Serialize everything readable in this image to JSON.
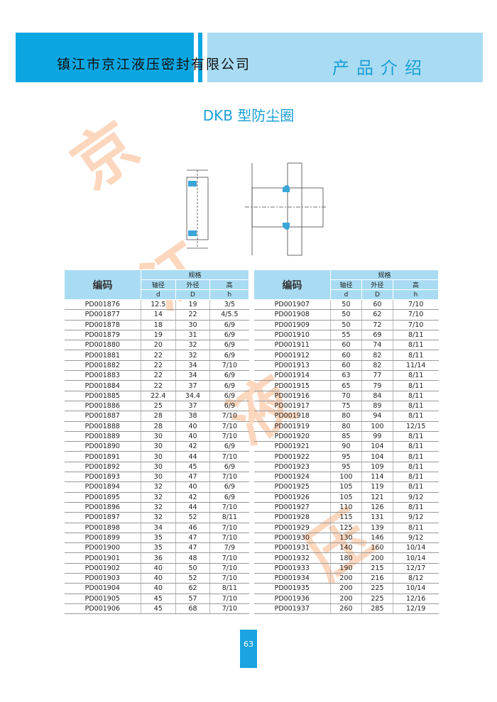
{
  "header": {
    "company": "镇江市京江液压密封有限公司",
    "section": "产品介绍",
    "colors": {
      "dark": "#0aa6e2",
      "light": "#a9dcf3"
    }
  },
  "title": "DKB 型防尘圈",
  "watermark": [
    "京",
    "江",
    "液",
    "压"
  ],
  "table_headers": {
    "code": "编码",
    "spec": "规格",
    "shaft": "轴径",
    "outer": "外径",
    "height": "高",
    "d": "d",
    "D": "D",
    "h": "h"
  },
  "left_rows": [
    [
      "PD001876",
      "12.5",
      "19",
      "3/5"
    ],
    [
      "PD001877",
      "14",
      "22",
      "4/5.5"
    ],
    [
      "PD001878",
      "18",
      "30",
      "6/9"
    ],
    [
      "PD001879",
      "19",
      "31",
      "6/9"
    ],
    [
      "PD001880",
      "20",
      "32",
      "6/9"
    ],
    [
      "PD001881",
      "22",
      "32",
      "6/9"
    ],
    [
      "PD001882",
      "22",
      "34",
      "7/10"
    ],
    [
      "PD001883",
      "22",
      "34",
      "6/9"
    ],
    [
      "PD001884",
      "22",
      "37",
      "6/9"
    ],
    [
      "PD001885",
      "22.4",
      "34.4",
      "6/9"
    ],
    [
      "PD001886",
      "25",
      "37",
      "6/9"
    ],
    [
      "PD001887",
      "28",
      "38",
      "7/10"
    ],
    [
      "PD001888",
      "28",
      "40",
      "7/10"
    ],
    [
      "PD001889",
      "30",
      "40",
      "7/10"
    ],
    [
      "PD001890",
      "30",
      "42",
      "6/9"
    ],
    [
      "PD001891",
      "30",
      "44",
      "7/10"
    ],
    [
      "PD001892",
      "30",
      "45",
      "6/9"
    ],
    [
      "PD001893",
      "30",
      "47",
      "7/10"
    ],
    [
      "PD001894",
      "32",
      "40",
      "6/9"
    ],
    [
      "PD001895",
      "32",
      "42",
      "6/9"
    ],
    [
      "PD001896",
      "32",
      "44",
      "7/10"
    ],
    [
      "PD001897",
      "32",
      "52",
      "8/11"
    ],
    [
      "PD001898",
      "34",
      "46",
      "7/10"
    ],
    [
      "PD001899",
      "35",
      "47",
      "7/10"
    ],
    [
      "PD001900",
      "35",
      "47",
      "7/9"
    ],
    [
      "PD001901",
      "36",
      "48",
      "7/10"
    ],
    [
      "PD001902",
      "40",
      "50",
      "7/10"
    ],
    [
      "PD001903",
      "40",
      "52",
      "7/10"
    ],
    [
      "PD001904",
      "40",
      "62",
      "8/11"
    ],
    [
      "PD001905",
      "45",
      "57",
      "7/10"
    ],
    [
      "PD001906",
      "45",
      "68",
      "7/10"
    ]
  ],
  "right_rows": [
    [
      "PD001907",
      "50",
      "60",
      "7/10"
    ],
    [
      "PD001908",
      "50",
      "62",
      "7/10"
    ],
    [
      "PD001909",
      "50",
      "72",
      "7/10"
    ],
    [
      "PD001910",
      "55",
      "69",
      "8/11"
    ],
    [
      "PD001911",
      "60",
      "74",
      "8/11"
    ],
    [
      "PD001912",
      "60",
      "82",
      "8/11"
    ],
    [
      "PD001913",
      "60",
      "82",
      "11/14"
    ],
    [
      "PD001914",
      "63",
      "77",
      "8/11"
    ],
    [
      "PD001915",
      "65",
      "79",
      "8/11"
    ],
    [
      "PD001916",
      "70",
      "84",
      "8/11"
    ],
    [
      "PD001917",
      "75",
      "89",
      "8/11"
    ],
    [
      "PD001918",
      "80",
      "94",
      "8/11"
    ],
    [
      "PD001919",
      "80",
      "100",
      "12/15"
    ],
    [
      "PD001920",
      "85",
      "99",
      "8/11"
    ],
    [
      "PD001921",
      "90",
      "104",
      "8/11"
    ],
    [
      "PD001922",
      "95",
      "104",
      "8/11"
    ],
    [
      "PD001923",
      "95",
      "109",
      "8/11"
    ],
    [
      "PD001924",
      "100",
      "114",
      "8/11"
    ],
    [
      "PD001925",
      "105",
      "119",
      "8/11"
    ],
    [
      "PD001926",
      "105",
      "121",
      "9/12"
    ],
    [
      "PD001927",
      "110",
      "126",
      "8/11"
    ],
    [
      "PD001928",
      "115",
      "131",
      "9/12"
    ],
    [
      "PD001929",
      "125",
      "139",
      "8/11"
    ],
    [
      "PD001930",
      "130",
      "146",
      "9/12"
    ],
    [
      "PD001931",
      "140",
      "160",
      "10/14"
    ],
    [
      "PD001932",
      "180",
      "200",
      "10/14"
    ],
    [
      "PD001933",
      "190",
      "215",
      "12/17"
    ],
    [
      "PD001934",
      "200",
      "216",
      "8/12"
    ],
    [
      "PD001935",
      "200",
      "225",
      "10/14"
    ],
    [
      "PD001936",
      "200",
      "225",
      "12/16"
    ],
    [
      "PD001937",
      "260",
      "285",
      "12/19"
    ]
  ],
  "page_number": "63"
}
